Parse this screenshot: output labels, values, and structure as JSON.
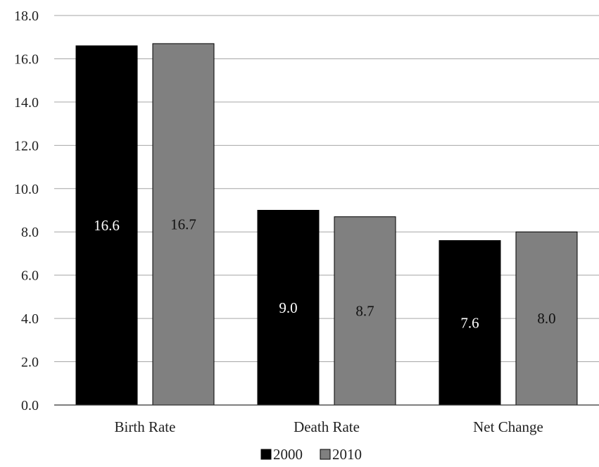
{
  "chart_data": {
    "type": "bar",
    "title": "",
    "xlabel": "",
    "ylabel": "",
    "categories": [
      "Birth Rate",
      "Death Rate",
      "Net Change"
    ],
    "series": [
      {
        "name": "2000",
        "values": [
          16.6,
          9.0,
          7.6
        ],
        "labels": [
          "16.6",
          "9.0",
          "7.6"
        ],
        "color": "#000000",
        "label_color": "#ffffff"
      },
      {
        "name": "2010",
        "values": [
          16.7,
          8.7,
          8.0
        ],
        "labels": [
          "16.7",
          "8.7",
          "8.0"
        ],
        "color": "#808080",
        "label_color": "#111111"
      }
    ],
    "ylim": [
      0,
      18
    ],
    "yticks": [
      0,
      2,
      4,
      6,
      8,
      10,
      12,
      14,
      16,
      18
    ],
    "ytick_labels": [
      "0.0",
      "2.0",
      "4.0",
      "6.0",
      "8.0",
      "10.0",
      "12.0",
      "14.0",
      "16.0",
      "18.0"
    ],
    "grid": true,
    "legend": "bottom-center",
    "data_labels": "inside-center"
  }
}
